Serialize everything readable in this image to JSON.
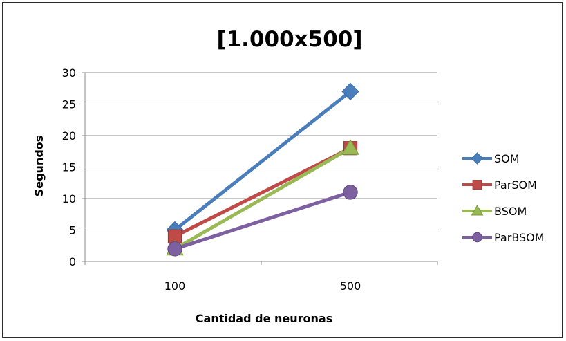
{
  "chart_data": {
    "type": "line",
    "title": "[1.000x500]",
    "xlabel": "Cantidad de neuronas",
    "ylabel": "Segundos",
    "categories": [
      "100",
      "500"
    ],
    "ylim": [
      0,
      30
    ],
    "yticks": [
      0,
      5,
      10,
      15,
      20,
      25,
      30
    ],
    "grid": true,
    "legend_position": "right",
    "series": [
      {
        "name": "SOM",
        "values": [
          5,
          27
        ],
        "color": "#4a7ebb",
        "marker": "diamond"
      },
      {
        "name": "ParSOM",
        "values": [
          4,
          18
        ],
        "color": "#be4b48",
        "marker": "square"
      },
      {
        "name": "BSOM",
        "values": [
          2,
          18
        ],
        "color": "#98b954",
        "marker": "triangle"
      },
      {
        "name": "ParBSOM",
        "values": [
          2,
          11
        ],
        "color": "#7d60a0",
        "marker": "circle"
      }
    ]
  }
}
